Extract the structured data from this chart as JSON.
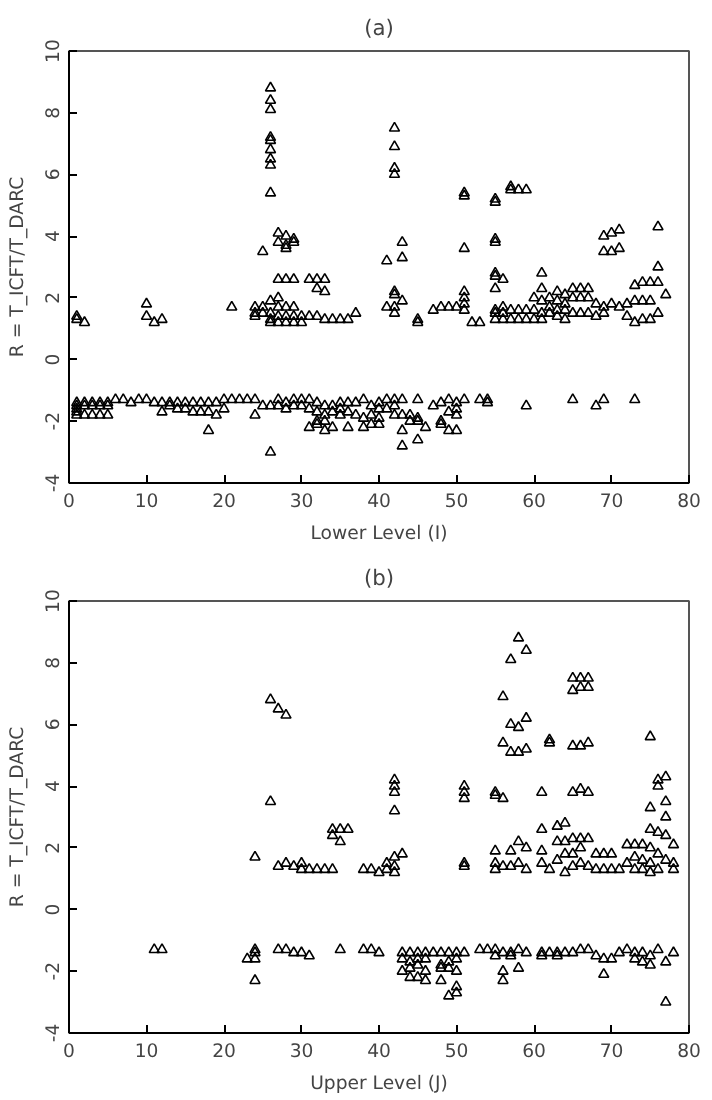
{
  "chart_data": [
    {
      "type": "scatter",
      "title": "(a)",
      "xlabel": "Lower Level (I)",
      "ylabel": "R = T_ICFT/T_DARC",
      "marker": "triangle",
      "xlim": [
        0,
        80
      ],
      "ylim": [
        -4,
        10
      ],
      "xticks": [
        0,
        10,
        20,
        30,
        40,
        50,
        60,
        70,
        80
      ],
      "yticks": [
        -4,
        -2,
        0,
        2,
        4,
        6,
        8,
        10
      ],
      "series": [
        {
          "color": "#000000",
          "x": [
            1,
            1,
            1,
            1,
            1,
            1,
            1,
            2,
            2,
            2,
            2,
            3,
            3,
            3,
            4,
            4,
            4,
            5,
            5,
            5,
            6,
            7,
            8,
            9,
            10,
            10,
            10,
            11,
            11,
            12,
            12,
            12,
            13,
            13,
            14,
            14,
            15,
            15,
            16,
            16,
            17,
            17,
            18,
            18,
            18,
            19,
            19,
            20,
            20,
            21,
            21,
            22,
            23,
            24,
            24,
            24,
            24,
            24,
            25,
            25,
            25,
            25,
            26,
            26,
            26,
            26,
            26,
            26,
            26,
            26,
            26,
            26,
            26,
            26,
            26,
            26,
            26,
            27,
            27,
            27,
            27,
            27,
            27,
            27,
            27,
            27,
            28,
            28,
            28,
            28,
            28,
            28,
            28,
            28,
            28,
            29,
            29,
            29,
            29,
            29,
            29,
            29,
            29,
            30,
            30,
            30,
            30,
            31,
            31,
            31,
            31,
            31,
            32,
            32,
            32,
            32,
            32,
            32,
            32,
            33,
            33,
            33,
            33,
            33,
            33,
            33,
            34,
            34,
            34,
            34,
            35,
            35,
            35,
            35,
            36,
            36,
            36,
            36,
            37,
            37,
            37,
            38,
            38,
            38,
            39,
            39,
            39,
            40,
            40,
            40,
            40,
            41,
            41,
            41,
            41,
            42,
            42,
            42,
            42,
            42,
            42,
            42,
            42,
            42,
            42,
            42,
            43,
            43,
            43,
            43,
            43,
            43,
            43,
            44,
            44,
            45,
            45,
            45,
            45,
            45,
            45,
            46,
            47,
            47,
            48,
            48,
            48,
            48,
            49,
            49,
            49,
            49,
            50,
            50,
            50,
            50,
            50,
            51,
            51,
            51,
            51,
            51,
            51,
            51,
            51,
            52,
            53,
            53,
            54,
            54,
            55,
            55,
            55,
            55,
            55,
            55,
            55,
            55,
            55,
            55,
            56,
            56,
            56,
            56,
            57,
            57,
            57,
            57,
            58,
            58,
            58,
            59,
            59,
            59,
            59,
            60,
            60,
            60,
            61,
            61,
            61,
            61,
            61,
            62,
            62,
            62,
            63,
            63,
            63,
            63,
            64,
            64,
            64,
            64,
            65,
            65,
            65,
            65,
            66,
            66,
            66,
            67,
            67,
            67,
            68,
            68,
            68,
            69,
            69,
            69,
            69,
            69,
            70,
            70,
            70,
            71,
            71,
            71,
            72,
            72,
            73,
            73,
            73,
            73,
            74,
            74,
            74,
            75,
            75,
            75,
            76,
            76,
            76,
            76,
            77
          ],
          "values": [
            1.4,
            1.3,
            -1.4,
            -1.5,
            -1.6,
            -1.7,
            -1.8,
            1.2,
            -1.4,
            -1.5,
            -1.8,
            -1.4,
            -1.5,
            -1.8,
            -1.4,
            -1.5,
            -1.8,
            -1.4,
            -1.5,
            -1.8,
            -1.3,
            -1.3,
            -1.4,
            -1.3,
            1.8,
            1.4,
            -1.3,
            1.2,
            -1.4,
            1.3,
            -1.4,
            -1.7,
            -1.4,
            -1.5,
            -1.4,
            -1.6,
            -1.4,
            -1.6,
            -1.4,
            -1.7,
            -1.4,
            -1.7,
            -1.4,
            -1.7,
            -2.3,
            -1.4,
            -1.8,
            -1.3,
            -1.6,
            1.7,
            -1.3,
            -1.3,
            -1.3,
            1.7,
            1.5,
            1.4,
            -1.3,
            -1.8,
            3.5,
            1.7,
            1.5,
            -1.5,
            8.8,
            8.4,
            8.1,
            7.2,
            7.1,
            6.8,
            6.5,
            6.3,
            5.4,
            1.9,
            1.5,
            1.3,
            1.2,
            -1.5,
            -3.0,
            4.1,
            3.8,
            2.6,
            2.0,
            1.7,
            1.4,
            1.2,
            -1.3,
            -1.5,
            4.0,
            3.7,
            3.6,
            2.6,
            1.7,
            1.4,
            1.2,
            -1.4,
            -1.6,
            3.9,
            3.8,
            2.6,
            1.7,
            1.4,
            1.2,
            -1.3,
            -1.5,
            1.4,
            1.2,
            -1.3,
            -1.5,
            2.6,
            1.4,
            -1.3,
            -1.6,
            -2.2,
            2.6,
            2.3,
            1.4,
            -1.4,
            -1.7,
            -2.0,
            -2.1,
            2.6,
            2.2,
            1.3,
            -1.5,
            -1.8,
            -2.0,
            -2.3,
            1.3,
            -1.5,
            -1.7,
            -2.2,
            1.3,
            -1.4,
            -1.6,
            -1.8,
            1.3,
            -1.4,
            -1.7,
            -2.2,
            1.5,
            -1.4,
            -1.8,
            -1.3,
            -1.9,
            -2.2,
            -1.5,
            -1.8,
            -2.1,
            -1.4,
            -1.6,
            -1.9,
            -2.1,
            3.2,
            1.7,
            -1.3,
            -1.6,
            7.5,
            6.9,
            6.2,
            6.0,
            2.2,
            2.1,
            1.7,
            1.5,
            -1.3,
            -1.5,
            -1.8,
            3.8,
            3.3,
            1.9,
            -1.3,
            -1.8,
            -2.3,
            -2.8,
            -1.8,
            -2.0,
            1.3,
            1.2,
            -1.3,
            -1.9,
            -2.0,
            -2.6,
            -2.2,
            1.6,
            -1.5,
            1.7,
            -1.4,
            -2.0,
            -2.1,
            1.7,
            -1.3,
            -1.7,
            -2.3,
            1.7,
            -1.4,
            -1.6,
            -1.8,
            -2.3,
            5.4,
            5.3,
            3.6,
            2.2,
            2.0,
            1.8,
            1.6,
            -1.3,
            1.2,
            1.2,
            -1.3,
            -1.3,
            -1.4,
            5.2,
            5.1,
            3.9,
            3.8,
            2.8,
            2.7,
            2.3,
            1.6,
            1.5,
            1.3,
            2.6,
            1.7,
            1.5,
            1.3,
            5.6,
            5.5,
            1.6,
            1.3,
            5.5,
            1.6,
            1.3,
            5.5,
            1.6,
            1.3,
            -1.5,
            2.0,
            1.6,
            1.3,
            2.8,
            2.3,
            1.9,
            1.5,
            1.3,
            2.0,
            1.7,
            1.5,
            2.2,
            1.9,
            1.6,
            1.4,
            2.1,
            1.8,
            1.6,
            1.3,
            2.3,
            2.0,
            1.5,
            -1.3,
            2.3,
            2.0,
            1.5,
            2.3,
            2.0,
            1.5,
            1.8,
            1.4,
            -1.5,
            4.0,
            3.5,
            1.7,
            1.5,
            -1.3,
            4.1,
            3.5,
            1.8,
            4.2,
            3.6,
            1.7,
            1.8,
            1.4,
            2.4,
            1.9,
            1.2,
            -1.3,
            2.5,
            1.9,
            1.3,
            2.5,
            1.9,
            1.3,
            4.3,
            3.0,
            2.5,
            1.5,
            2.1
          ]
        }
      ]
    },
    {
      "type": "scatter",
      "title": "(b)",
      "xlabel": "Upper Level (J)",
      "ylabel": "R = T_ICFT/T_DARC",
      "marker": "triangle",
      "xlim": [
        0,
        80
      ],
      "ylim": [
        -4,
        10
      ],
      "xticks": [
        0,
        10,
        20,
        30,
        40,
        50,
        60,
        70,
        80
      ],
      "yticks": [
        -4,
        -2,
        0,
        2,
        4,
        6,
        8,
        10
      ],
      "series": [
        {
          "color": "#000000",
          "x": [
            11,
            12,
            23,
            24,
            24,
            24,
            24,
            24,
            26,
            26,
            27,
            27,
            27,
            28,
            28,
            28,
            29,
            29,
            30,
            30,
            30,
            31,
            31,
            32,
            33,
            34,
            34,
            34,
            35,
            35,
            35,
            36,
            38,
            38,
            39,
            39,
            40,
            40,
            41,
            41,
            42,
            42,
            42,
            42,
            42,
            42,
            42,
            43,
            43,
            43,
            43,
            44,
            44,
            44,
            44,
            45,
            45,
            45,
            45,
            46,
            46,
            46,
            46,
            47,
            48,
            48,
            48,
            48,
            49,
            49,
            49,
            49,
            50,
            50,
            50,
            50,
            50,
            51,
            51,
            51,
            51,
            51,
            51,
            53,
            54,
            55,
            55,
            55,
            55,
            55,
            55,
            55,
            56,
            56,
            56,
            56,
            56,
            56,
            56,
            57,
            57,
            57,
            57,
            57,
            57,
            57,
            58,
            58,
            58,
            58,
            58,
            58,
            58,
            59,
            59,
            59,
            59,
            59,
            59,
            61,
            61,
            61,
            61,
            61,
            61,
            62,
            62,
            62,
            62,
            63,
            63,
            63,
            63,
            63,
            64,
            64,
            64,
            64,
            64,
            65,
            65,
            65,
            65,
            65,
            65,
            65,
            65,
            66,
            66,
            66,
            66,
            66,
            66,
            66,
            66,
            67,
            67,
            67,
            67,
            67,
            67,
            67,
            68,
            68,
            68,
            69,
            69,
            69,
            69,
            70,
            70,
            70,
            71,
            71,
            72,
            72,
            72,
            73,
            73,
            73,
            73,
            73,
            74,
            74,
            74,
            74,
            74,
            75,
            75,
            75,
            75,
            75,
            75,
            75,
            75,
            76,
            76,
            76,
            76,
            76,
            76,
            77,
            77,
            77,
            77,
            77,
            77,
            77,
            78,
            78,
            78,
            78
          ],
          "values": [
            -1.3,
            -1.3,
            -1.6,
            1.7,
            -1.3,
            -1.4,
            -1.6,
            -2.3,
            6.8,
            3.5,
            6.5,
            1.4,
            -1.3,
            6.3,
            1.5,
            -1.3,
            1.4,
            -1.4,
            1.5,
            1.3,
            -1.4,
            1.3,
            -1.5,
            1.3,
            1.3,
            2.6,
            2.4,
            1.3,
            2.6,
            2.2,
            -1.3,
            2.6,
            1.3,
            -1.3,
            1.3,
            -1.3,
            1.2,
            -1.4,
            1.5,
            1.3,
            4.2,
            4.0,
            3.8,
            3.2,
            1.7,
            1.4,
            1.2,
            1.8,
            -1.4,
            -1.6,
            -2.0,
            -1.4,
            -1.7,
            -1.9,
            -2.2,
            -1.4,
            -1.6,
            -1.8,
            -2.2,
            -1.4,
            -1.6,
            -2.0,
            -2.3,
            -1.4,
            -1.4,
            -1.8,
            -1.9,
            -2.3,
            -1.4,
            -1.7,
            -1.9,
            -2.8,
            -1.4,
            -1.6,
            -2.0,
            -2.5,
            -2.7,
            4.0,
            3.8,
            3.6,
            1.5,
            1.4,
            -1.4,
            -1.3,
            -1.3,
            3.8,
            3.7,
            1.9,
            1.5,
            1.3,
            -1.3,
            -1.5,
            6.9,
            5.4,
            3.6,
            1.4,
            -1.4,
            -2.0,
            -2.3,
            8.1,
            6.0,
            5.1,
            1.9,
            1.4,
            -1.4,
            -1.5,
            8.8,
            5.9,
            5.1,
            2.2,
            1.5,
            -1.3,
            -1.9,
            8.4,
            6.2,
            5.2,
            2.0,
            1.3,
            -1.4,
            3.8,
            2.6,
            1.9,
            1.5,
            -1.4,
            -1.5,
            5.5,
            5.4,
            1.3,
            -1.4,
            2.7,
            2.2,
            1.6,
            -1.4,
            -1.5,
            2.8,
            2.2,
            1.8,
            1.2,
            -1.4,
            7.5,
            7.1,
            5.3,
            3.8,
            2.3,
            1.8,
            1.4,
            -1.4,
            7.5,
            7.2,
            5.3,
            3.9,
            2.3,
            2.0,
            1.5,
            -1.3,
            7.5,
            7.2,
            5.4,
            3.8,
            2.3,
            1.4,
            -1.3,
            1.8,
            1.3,
            -1.5,
            1.8,
            1.3,
            -1.6,
            -2.1,
            1.8,
            1.3,
            -1.6,
            1.3,
            -1.4,
            2.1,
            1.5,
            -1.3,
            2.1,
            1.7,
            1.3,
            -1.4,
            -1.6,
            2.1,
            1.6,
            1.3,
            -1.4,
            -1.7,
            5.6,
            3.3,
            2.6,
            2.0,
            1.5,
            1.2,
            -1.5,
            -1.8,
            4.2,
            4.0,
            2.5,
            1.8,
            1.3,
            -1.3,
            4.3,
            3.5,
            3.0,
            2.4,
            1.6,
            -1.7,
            -3.0,
            2.1,
            1.5,
            1.3,
            -1.4
          ]
        }
      ]
    }
  ]
}
